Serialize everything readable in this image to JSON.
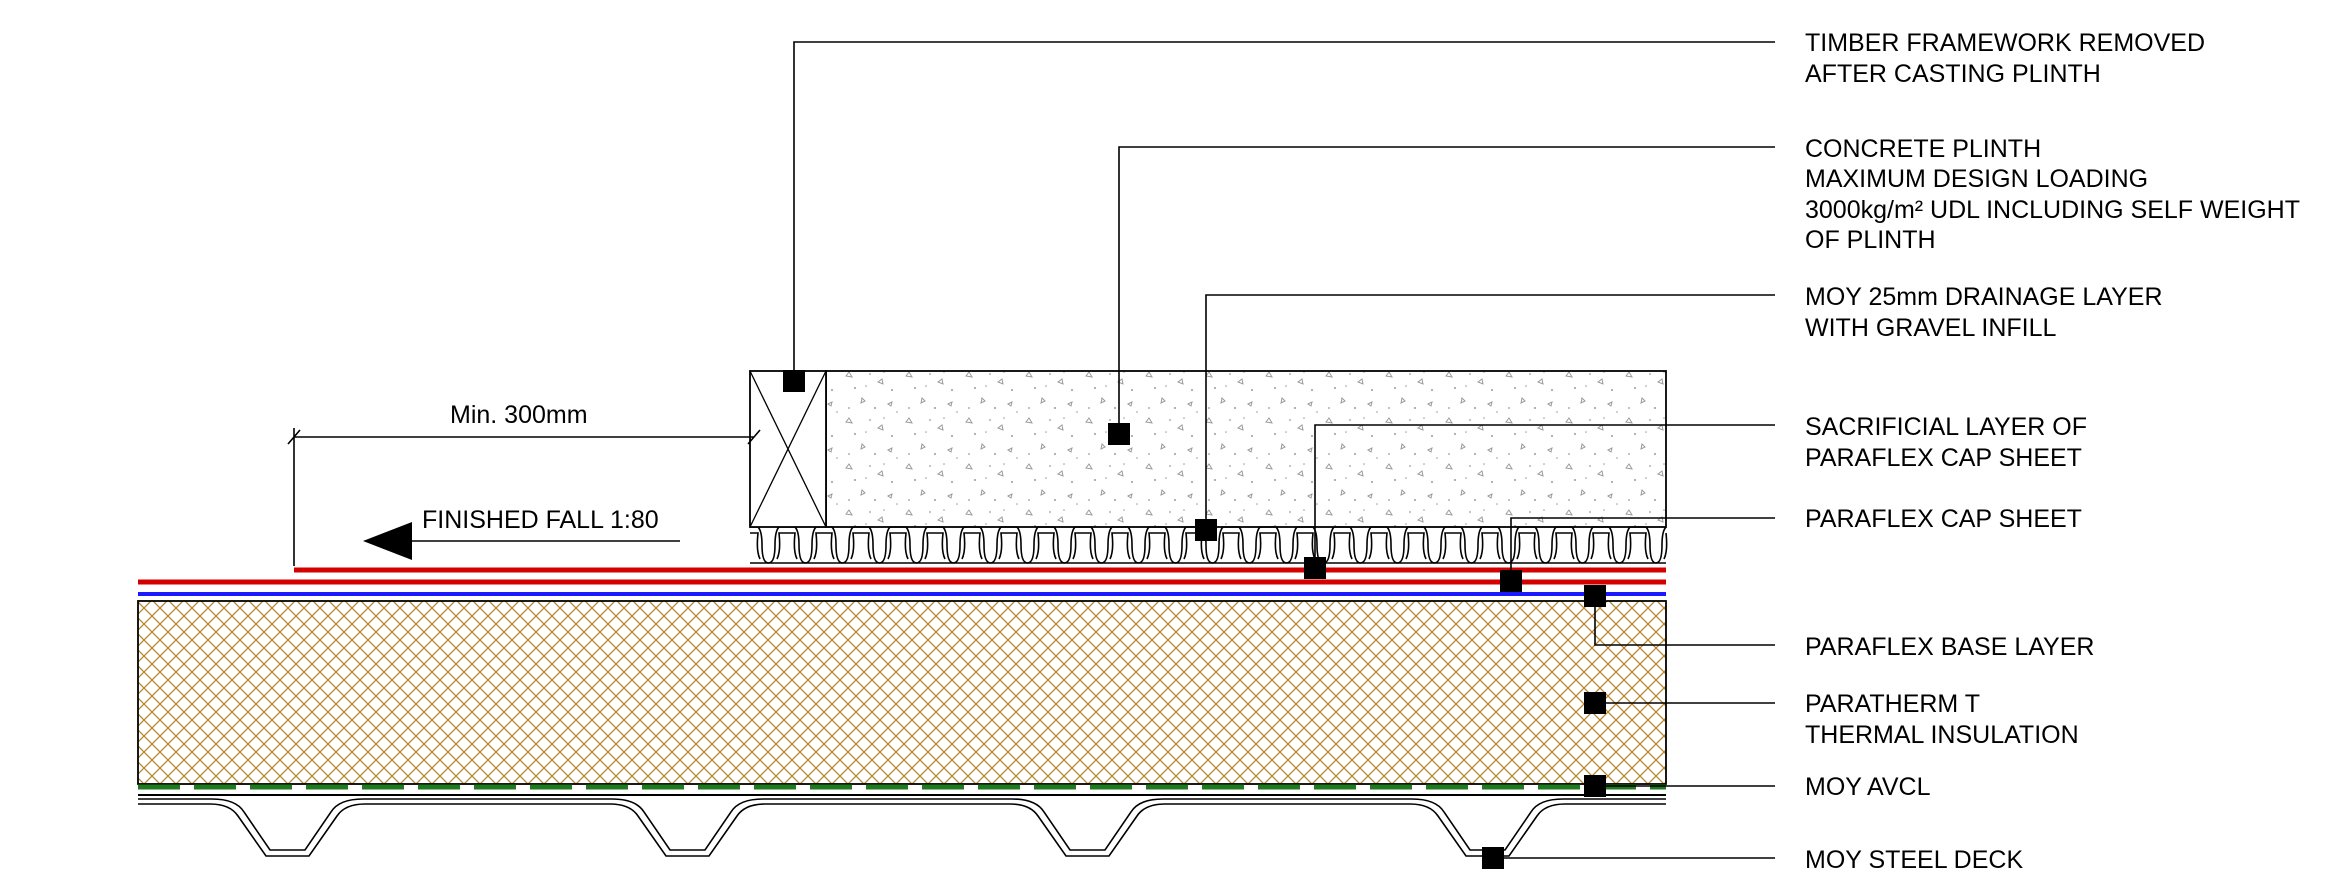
{
  "annotations": {
    "timber_framework": [
      "TIMBER FRAMEWORK REMOVED",
      "AFTER CASTING PLINTH"
    ],
    "concrete_plinth": [
      "CONCRETE PLINTH",
      "MAXIMUM DESIGN LOADING",
      "3000kg/m² UDL INCLUDING SELF WEIGHT",
      "OF PLINTH"
    ],
    "drainage_layer": [
      "MOY 25mm DRAINAGE LAYER",
      "WITH GRAVEL INFILL"
    ],
    "sacrificial_layer": [
      "SACRIFICIAL LAYER OF",
      "PARAFLEX CAP SHEET"
    ],
    "cap_sheet": [
      "PARAFLEX CAP SHEET"
    ],
    "base_layer": [
      "PARAFLEX BASE LAYER"
    ],
    "insulation": [
      "PARATHERM T",
      "THERMAL INSULATION"
    ],
    "avcl": [
      "MOY AVCL"
    ],
    "steel_deck": [
      "MOY STEEL DECK"
    ]
  },
  "dimension": {
    "label": "Min. 300mm"
  },
  "fall": {
    "label": "FINISHED FALL 1:80"
  },
  "colors": {
    "cap_sheet": "#d40000",
    "base_layer": "#1a1aff",
    "insulation": "#b8862b",
    "avcl": "#1f7a1f",
    "lines": "#000000"
  }
}
